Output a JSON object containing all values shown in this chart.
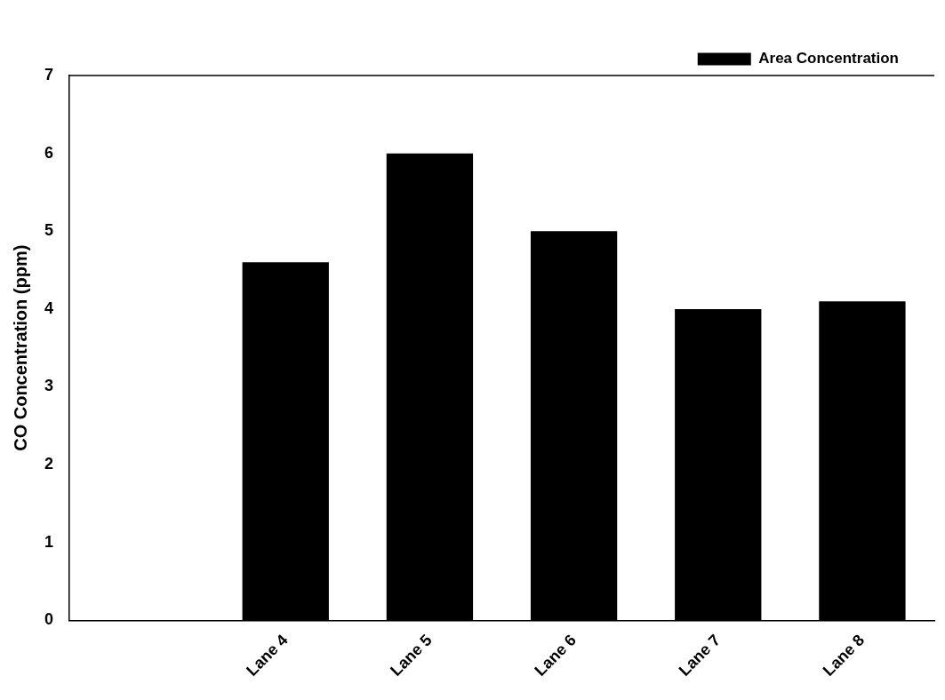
{
  "chart_data": {
    "type": "bar",
    "ylabel": "CO Concentration (ppm)",
    "categories": [
      null,
      "Lane 4",
      "Lane 5",
      "Lane 6",
      "Lane 7",
      "Lane 8"
    ],
    "series": [
      {
        "name": "Area Concentration",
        "color": "#000000",
        "values": [
          null,
          4.6,
          6.0,
          5.0,
          4.0,
          4.1
        ]
      }
    ],
    "ylim": [
      0,
      7
    ],
    "yticks": [
      0,
      1,
      2,
      3,
      4,
      5,
      6,
      7
    ],
    "grid": false,
    "legend": "top right"
  }
}
